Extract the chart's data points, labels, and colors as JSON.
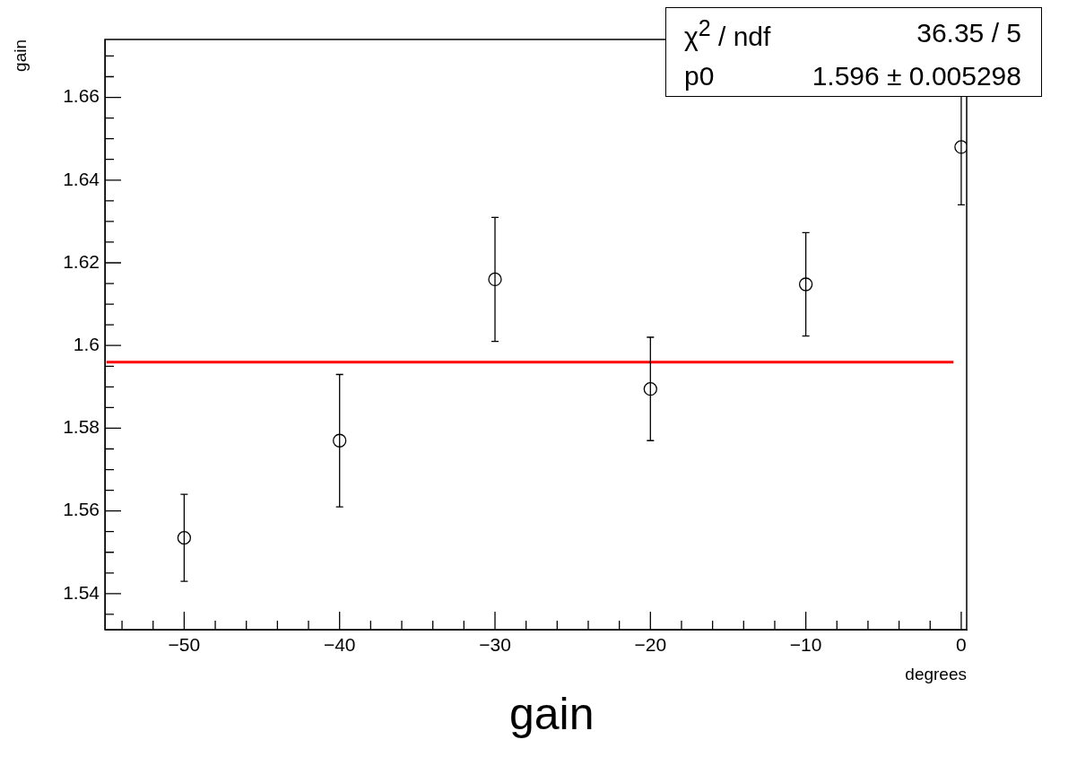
{
  "chart_data": {
    "type": "scatter",
    "title": "gain",
    "xlabel": "degrees",
    "ylabel": "gain",
    "x": [
      -50,
      -40,
      -30,
      -20,
      -10,
      0
    ],
    "series": [
      {
        "color": "#000000",
        "values": [
          1.5535,
          1.577,
          1.616,
          1.5895,
          1.6148,
          1.648
        ],
        "errors": [
          0.0105,
          0.016,
          0.015,
          0.0125,
          0.0125,
          0.014
        ],
        "marker": "circle"
      },
      {
        "type": "line",
        "color": "#ff0000",
        "x": [
          -55,
          -0.5
        ],
        "values": [
          1.596,
          1.596
        ],
        "marker": "none",
        "line_style": "solid"
      }
    ],
    "xlim": [
      -55.1,
      0.35
    ],
    "xticks": [
      {
        "value": -54,
        "label": null
      },
      {
        "value": -52,
        "label": null
      },
      -50,
      {
        "value": -48,
        "label": null
      },
      {
        "value": -46,
        "label": null
      },
      {
        "value": -44,
        "label": null
      },
      {
        "value": -42,
        "label": null
      },
      -40,
      {
        "value": -38,
        "label": null
      },
      {
        "value": -36,
        "label": null
      },
      {
        "value": -34,
        "label": null
      },
      {
        "value": -32,
        "label": null
      },
      -30,
      {
        "value": -28,
        "label": null
      },
      {
        "value": -26,
        "label": null
      },
      {
        "value": -24,
        "label": null
      },
      {
        "value": -22,
        "label": null
      },
      -20,
      {
        "value": -18,
        "label": null
      },
      {
        "value": -16,
        "label": null
      },
      {
        "value": -14,
        "label": null
      },
      {
        "value": -12,
        "label": null
      },
      -10,
      {
        "value": -8,
        "label": null
      },
      {
        "value": -6,
        "label": null
      },
      {
        "value": -4,
        "label": null
      },
      {
        "value": -2,
        "label": null
      },
      0
    ],
    "ylim": [
      1.5313,
      1.674
    ],
    "yticks": [
      {
        "value": 1.535,
        "label": null
      },
      1.54,
      {
        "value": 1.545,
        "label": null
      },
      {
        "value": 1.55,
        "label": null
      },
      {
        "value": 1.555,
        "label": null
      },
      1.56,
      {
        "value": 1.565,
        "label": null
      },
      {
        "value": 1.57,
        "label": null
      },
      {
        "value": 1.575,
        "label": null
      },
      1.58,
      {
        "value": 1.585,
        "label": null
      },
      {
        "value": 1.59,
        "label": null
      },
      {
        "value": 1.595,
        "label": null
      },
      1.6,
      {
        "value": 1.605,
        "label": null
      },
      {
        "value": 1.61,
        "label": null
      },
      {
        "value": 1.615,
        "label": null
      },
      1.62,
      {
        "value": 1.625,
        "label": null
      },
      {
        "value": 1.63,
        "label": null
      },
      {
        "value": 1.635,
        "label": null
      },
      1.64,
      {
        "value": 1.645,
        "label": null
      },
      {
        "value": 1.65,
        "label": null
      },
      {
        "value": 1.655,
        "label": null
      },
      1.66,
      {
        "value": 1.665,
        "label": null
      },
      {
        "value": 1.67,
        "label": null
      }
    ],
    "annotations": [
      "χ$^{2}$ / ndf",
      "36.35 / 5",
      "p0",
      "1.596 ± 0.005298"
    ],
    "grid": false,
    "legend": false
  }
}
